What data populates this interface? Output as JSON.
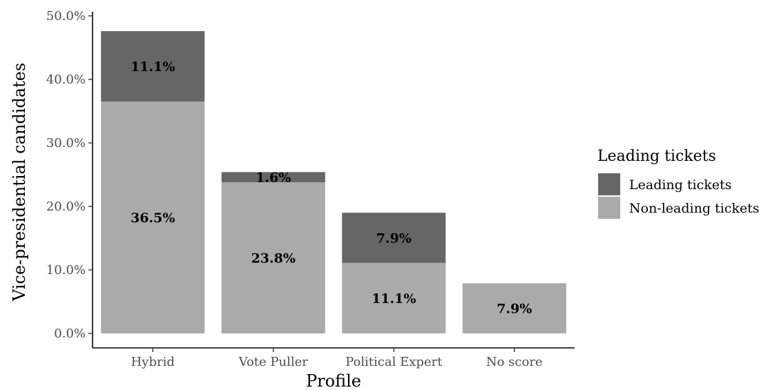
{
  "chart_data": {
    "type": "bar",
    "stacked": true,
    "categories": [
      "Hybrid",
      "Vote Puller",
      "Political Expert",
      "No score"
    ],
    "series": [
      {
        "name": "Non-leading tickets",
        "values": [
          36.5,
          23.8,
          11.1,
          7.9
        ],
        "labels": [
          "36.5%",
          "23.8%",
          "11.1%",
          "7.9%"
        ],
        "color": "#aaaaaa"
      },
      {
        "name": "Leading tickets",
        "values": [
          11.1,
          1.6,
          7.9,
          0
        ],
        "labels": [
          "11.1%",
          "1.6%",
          "7.9%",
          ""
        ],
        "color": "#666666"
      }
    ],
    "xlabel": "Profile",
    "ylabel": "Vice-presidential candidates",
    "ylim": [
      0,
      50
    ],
    "yticks": [
      0,
      10,
      20,
      30,
      40,
      50
    ],
    "ytick_labels": [
      "0.0%",
      "10.0%",
      "20.0%",
      "30.0%",
      "40.0%",
      "50.0%"
    ],
    "grid": false,
    "legend": {
      "title": "Leading tickets",
      "placement": "right",
      "entries": [
        {
          "label": "Leading tickets",
          "color": "#666666"
        },
        {
          "label": "Non-leading tickets",
          "color": "#aaaaaa"
        }
      ]
    }
  }
}
